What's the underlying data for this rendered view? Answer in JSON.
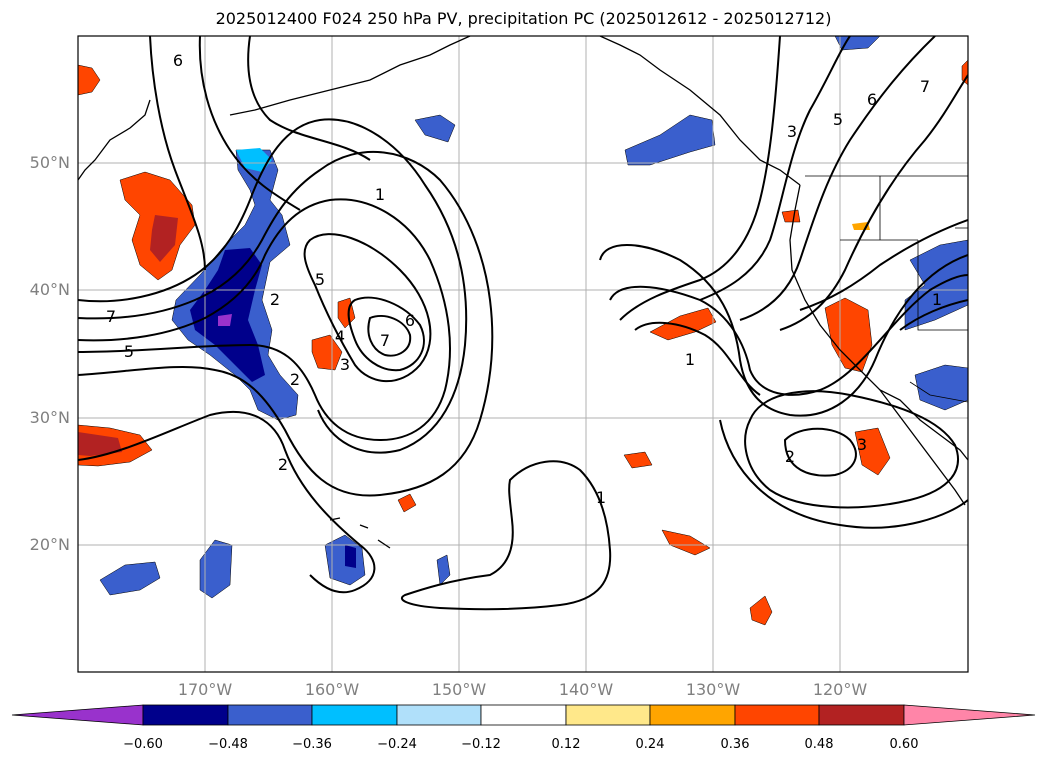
{
  "title": "2025012400 F024 250 hPa PV, precipitation PC (2025012612 - 2025012712)",
  "map": {
    "lat_labels": [
      "50°N",
      "40°N",
      "30°N",
      "20°N"
    ],
    "lon_labels": [
      "170°W",
      "160°W",
      "150°W",
      "140°W",
      "130°W",
      "120°W"
    ],
    "contour_labels": [
      "7",
      "5",
      "6",
      "5",
      "4",
      "3",
      "2",
      "2",
      "1",
      "6",
      "7",
      "1",
      "2",
      "1",
      "3",
      "5",
      "6",
      "7",
      "1",
      "2",
      "3"
    ],
    "colors": {
      "neg_strong": "#8a2be2",
      "neg_1": "#00008b",
      "neg_2": "#3a5fcd",
      "neg_3": "#00bfff",
      "neg_4": "#add8f0",
      "pos_1": "#ffe88a",
      "pos_2": "#ffa500",
      "pos_3": "#ff4500",
      "pos_4": "#b22222",
      "pos_strong": "#ff7ba0"
    }
  },
  "colorbar": {
    "ticks": [
      "−0.60",
      "−0.48",
      "−0.36",
      "−0.24",
      "−0.12",
      "0.12",
      "0.24",
      "0.36",
      "0.48",
      "0.60"
    ],
    "colors": [
      "#9932cc",
      "#00008b",
      "#3a5fcd",
      "#00bfff",
      "#b0e0fa",
      "#ffffff",
      "#ffe88a",
      "#ffa500",
      "#ff4500",
      "#b22222",
      "#ff85a8"
    ]
  }
}
